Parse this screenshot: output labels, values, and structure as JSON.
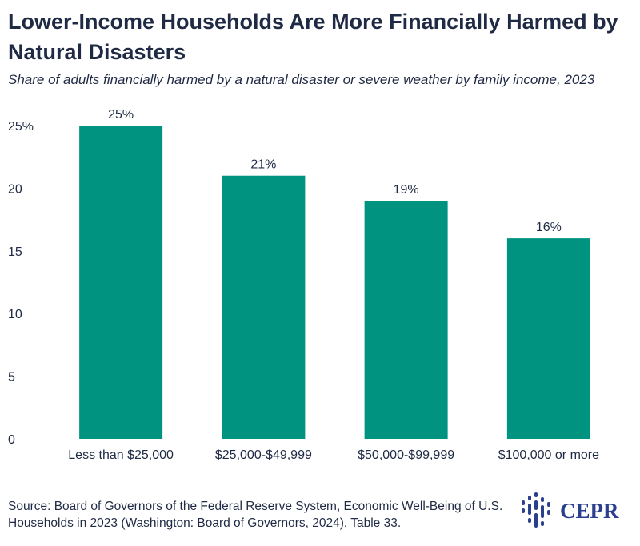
{
  "title": "Lower-Income Households Are More Financially Harmed by Natural Disasters",
  "subtitle": "Share of adults financially harmed by a natural disaster or severe weather by family income, 2023",
  "source": "Source: Board of Governors of the Federal Reserve System, Economic Well-Being of U.S. Households in 2023 (Washington: Board of Governors, 2024), Table 33.",
  "logo_text": "CEPR",
  "colors": {
    "bar": "#009480",
    "text": "#1f2a44",
    "logo": "#2b3f8f"
  },
  "chart_data": {
    "type": "bar",
    "title": "Lower-Income Households Are More Financially Harmed by Natural Disasters",
    "subtitle": "Share of adults financially harmed by a natural disaster or severe weather by family income, 2023",
    "xlabel": "",
    "ylabel": "",
    "categories": [
      "Less than $25,000",
      "$25,000-$49,999",
      "$50,000-$99,999",
      "$100,000 or more"
    ],
    "values": [
      25,
      21,
      19,
      16
    ],
    "value_labels": [
      "25%",
      "21%",
      "19%",
      "16%"
    ],
    "ylim": [
      0,
      25
    ],
    "yticks": [
      0,
      5,
      10,
      15,
      20,
      25
    ],
    "ytick_labels": [
      "0",
      "5",
      "10",
      "15",
      "20",
      "25%"
    ],
    "grid": false,
    "legend": "none"
  }
}
